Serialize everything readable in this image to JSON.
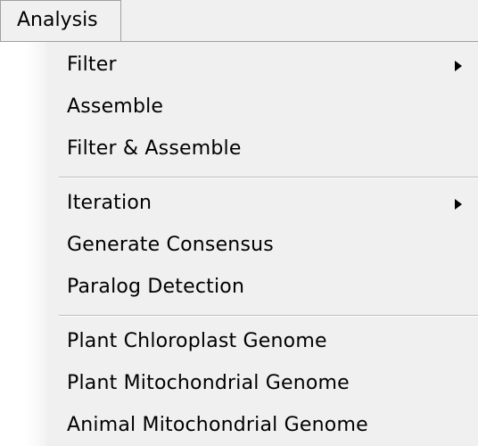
{
  "menubar": {
    "title": "Analysis"
  },
  "menu": {
    "filter": "Filter",
    "assemble": "Assemble",
    "filter_assemble": "Filter & Assemble",
    "iteration": "Iteration",
    "generate_consensus": "Generate Consensus",
    "paralog_detection": "Paralog Detection",
    "plant_chloroplast": "Plant Chloroplast Genome",
    "plant_mitochondrial": "Plant Mitochondrial Genome",
    "animal_mitochondrial": "Animal Mitochondrial Genome"
  },
  "icons": {
    "submenu": "chevron-right-icon"
  }
}
